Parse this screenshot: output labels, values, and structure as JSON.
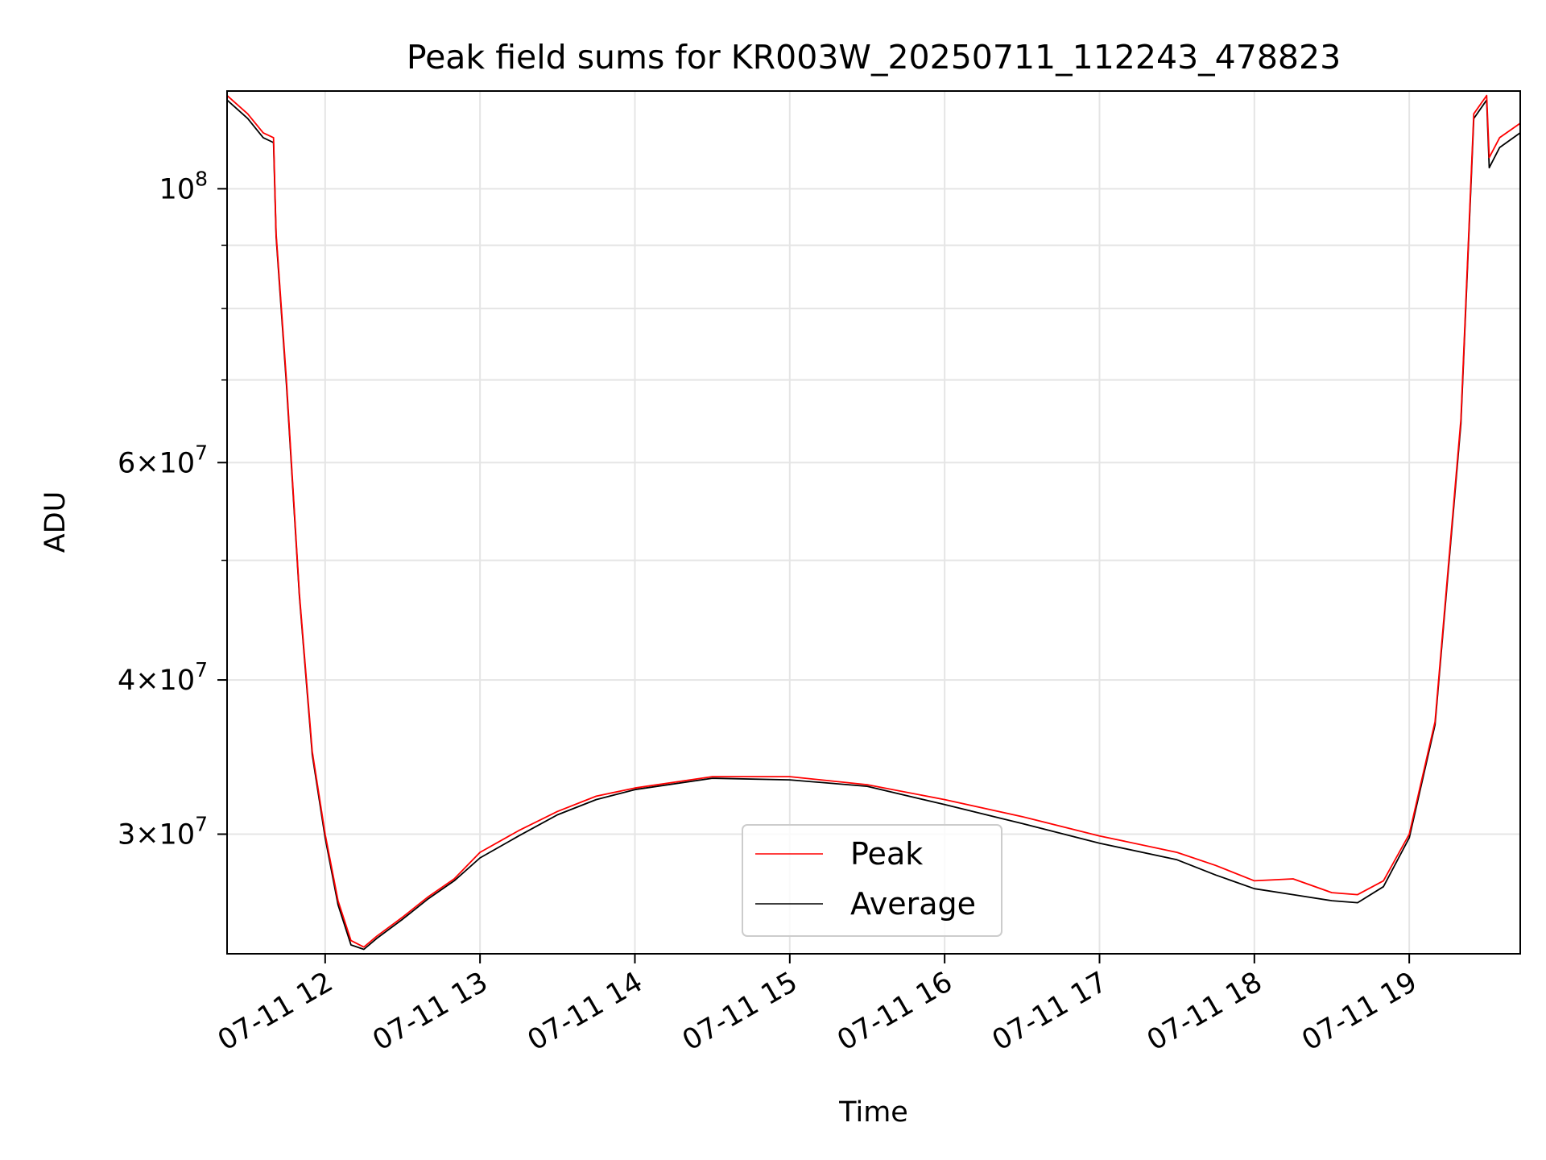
{
  "chart_data": {
    "type": "line",
    "title": "Peak field sums for KR003W_20250711_112243_478823",
    "xlabel": "Time",
    "ylabel": "ADU",
    "yscale": "log",
    "grid": true,
    "legend_position": "lower-center",
    "xlim": [
      "2025-07-11 11:22",
      "2025-07-11 19:43"
    ],
    "ylim": [
      24000000,
      120000000
    ],
    "x_ticks": [
      {
        "value": "2025-07-11 12:00",
        "label": "07-11 12"
      },
      {
        "value": "2025-07-11 13:00",
        "label": "07-11 13"
      },
      {
        "value": "2025-07-11 14:00",
        "label": "07-11 14"
      },
      {
        "value": "2025-07-11 15:00",
        "label": "07-11 15"
      },
      {
        "value": "2025-07-11 16:00",
        "label": "07-11 16"
      },
      {
        "value": "2025-07-11 17:00",
        "label": "07-11 17"
      },
      {
        "value": "2025-07-11 18:00",
        "label": "07-11 18"
      },
      {
        "value": "2025-07-11 19:00",
        "label": "07-11 19"
      }
    ],
    "y_ticks": [
      {
        "value": 30000000,
        "mantissa": "3",
        "exponent": "7"
      },
      {
        "value": 40000000,
        "mantissa": "4",
        "exponent": "7"
      },
      {
        "value": 60000000,
        "mantissa": "6",
        "exponent": "7"
      },
      {
        "value": 100000000,
        "mantissa": "",
        "exponent": "8"
      }
    ],
    "y_minor_ticks": [
      50000000,
      70000000,
      80000000,
      90000000
    ],
    "series": [
      {
        "name": "Peak",
        "color": "#ff0000",
        "x": [
          "2025-07-11 11:22",
          "2025-07-11 11:30",
          "2025-07-11 11:36",
          "2025-07-11 11:40",
          "2025-07-11 11:41",
          "2025-07-11 11:45",
          "2025-07-11 11:50",
          "2025-07-11 11:55",
          "2025-07-11 12:00",
          "2025-07-11 12:05",
          "2025-07-11 12:10",
          "2025-07-11 12:15",
          "2025-07-11 12:20",
          "2025-07-11 12:30",
          "2025-07-11 12:40",
          "2025-07-11 12:50",
          "2025-07-11 13:00",
          "2025-07-11 13:15",
          "2025-07-11 13:30",
          "2025-07-11 13:45",
          "2025-07-11 14:00",
          "2025-07-11 14:30",
          "2025-07-11 15:00",
          "2025-07-11 15:30",
          "2025-07-11 16:00",
          "2025-07-11 16:30",
          "2025-07-11 17:00",
          "2025-07-11 17:30",
          "2025-07-11 17:45",
          "2025-07-11 18:00",
          "2025-07-11 18:15",
          "2025-07-11 18:30",
          "2025-07-11 18:40",
          "2025-07-11 18:50",
          "2025-07-11 19:00",
          "2025-07-11 19:10",
          "2025-07-11 19:20",
          "2025-07-11 19:25",
          "2025-07-11 19:30",
          "2025-07-11 19:31",
          "2025-07-11 19:35",
          "2025-07-11 19:43"
        ],
        "values": [
          119000000,
          115000000,
          111000000,
          110000000,
          92000000,
          70000000,
          47000000,
          35000000,
          30000000,
          26500000,
          24600000,
          24300000,
          24800000,
          25700000,
          26700000,
          27600000,
          29000000,
          30200000,
          31300000,
          32200000,
          32700000,
          33400000,
          33400000,
          32900000,
          32000000,
          31000000,
          29900000,
          29000000,
          28300000,
          27500000,
          27600000,
          26900000,
          26800000,
          27500000,
          30000000,
          37000000,
          65000000,
          115000000,
          119000000,
          106000000,
          110000000,
          113000000
        ]
      },
      {
        "name": "Average",
        "color": "#000000",
        "x": [
          "2025-07-11 11:22",
          "2025-07-11 11:30",
          "2025-07-11 11:36",
          "2025-07-11 11:40",
          "2025-07-11 11:41",
          "2025-07-11 11:45",
          "2025-07-11 11:50",
          "2025-07-11 11:55",
          "2025-07-11 12:00",
          "2025-07-11 12:05",
          "2025-07-11 12:10",
          "2025-07-11 12:15",
          "2025-07-11 12:20",
          "2025-07-11 12:30",
          "2025-07-11 12:40",
          "2025-07-11 12:50",
          "2025-07-11 13:00",
          "2025-07-11 13:15",
          "2025-07-11 13:30",
          "2025-07-11 13:45",
          "2025-07-11 14:00",
          "2025-07-11 14:30",
          "2025-07-11 15:00",
          "2025-07-11 15:30",
          "2025-07-11 16:00",
          "2025-07-11 16:30",
          "2025-07-11 17:00",
          "2025-07-11 17:30",
          "2025-07-11 17:45",
          "2025-07-11 18:00",
          "2025-07-11 18:15",
          "2025-07-11 18:30",
          "2025-07-11 18:40",
          "2025-07-11 18:50",
          "2025-07-11 19:00",
          "2025-07-11 19:10",
          "2025-07-11 19:20",
          "2025-07-11 19:25",
          "2025-07-11 19:30",
          "2025-07-11 19:31",
          "2025-07-11 19:35",
          "2025-07-11 19:43"
        ],
        "values": [
          118000000,
          114000000,
          110000000,
          109000000,
          91500000,
          69500000,
          46800000,
          34800000,
          29800000,
          26300000,
          24400000,
          24200000,
          24700000,
          25600000,
          26600000,
          27500000,
          28700000,
          29900000,
          31100000,
          32000000,
          32600000,
          33300000,
          33200000,
          32800000,
          31700000,
          30600000,
          29500000,
          28600000,
          27800000,
          27100000,
          26800000,
          26500000,
          26400000,
          27200000,
          29800000,
          36800000,
          64500000,
          114000000,
          118000000,
          104000000,
          108000000,
          111000000
        ]
      }
    ]
  }
}
